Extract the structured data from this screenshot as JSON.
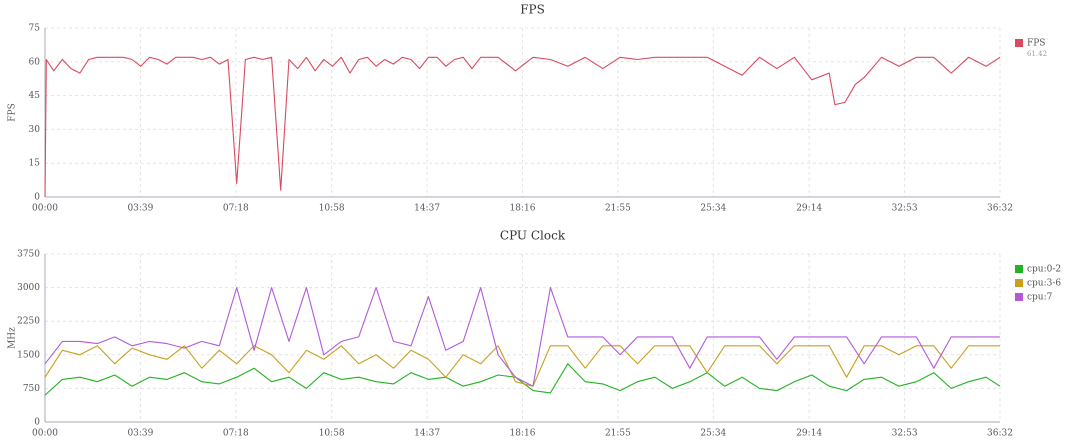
{
  "chart_data": [
    {
      "type": "line",
      "title": "FPS",
      "ylabel": "FPS",
      "grid": true,
      "legend": "right",
      "xlim": [
        0,
        2192
      ],
      "ylim": [
        0,
        75
      ],
      "yticks": [
        0,
        15,
        30,
        45,
        60,
        75
      ],
      "xticks": [
        {
          "value": 0,
          "label": "00:00"
        },
        {
          "value": 219,
          "label": "03:39"
        },
        {
          "value": 438,
          "label": "07:18"
        },
        {
          "value": 658,
          "label": "10:58"
        },
        {
          "value": 877,
          "label": "14:37"
        },
        {
          "value": 1096,
          "label": "18:16"
        },
        {
          "value": 1315,
          "label": "21:55"
        },
        {
          "value": 1534,
          "label": "25:34"
        },
        {
          "value": 1754,
          "label": "29:14"
        },
        {
          "value": 1973,
          "label": "32:53"
        },
        {
          "value": 2192,
          "label": "36:32"
        }
      ],
      "legend_value": 61.42,
      "x": [
        0,
        3,
        20,
        40,
        60,
        80,
        100,
        120,
        140,
        160,
        180,
        200,
        220,
        240,
        260,
        280,
        300,
        320,
        340,
        360,
        380,
        400,
        420,
        440,
        460,
        480,
        500,
        520,
        541,
        560,
        580,
        600,
        620,
        640,
        660,
        680,
        700,
        720,
        740,
        760,
        780,
        800,
        820,
        840,
        860,
        880,
        900,
        920,
        940,
        960,
        980,
        1000,
        1040,
        1080,
        1120,
        1160,
        1200,
        1240,
        1280,
        1320,
        1360,
        1400,
        1440,
        1480,
        1520,
        1560,
        1600,
        1640,
        1680,
        1720,
        1760,
        1800,
        1813,
        1836,
        1860,
        1880,
        1920,
        1960,
        2000,
        2040,
        2080,
        2120,
        2160,
        2192
      ],
      "series": [
        {
          "name": "FPS",
          "color": "#d9495f",
          "values": [
            0,
            61,
            56,
            61,
            57,
            55,
            61,
            62,
            62,
            62,
            62,
            61,
            58,
            62,
            61,
            59,
            62,
            62,
            62,
            61,
            62,
            59,
            61,
            6,
            61,
            62,
            61,
            62,
            3,
            61,
            57,
            62,
            56,
            61,
            58,
            62,
            55,
            61,
            62,
            58,
            61,
            59,
            62,
            61,
            57,
            62,
            62,
            58,
            61,
            62,
            57,
            62,
            62,
            56,
            62,
            61,
            58,
            62,
            57,
            62,
            61,
            62,
            62,
            62,
            62,
            58,
            54,
            62,
            57,
            62,
            52,
            55,
            41,
            42,
            50,
            53,
            62,
            58,
            62,
            62,
            55,
            62,
            58,
            62
          ]
        }
      ]
    },
    {
      "type": "line",
      "title": "CPU Clock",
      "ylabel": "MHz",
      "grid": true,
      "legend": "right",
      "xlim": [
        0,
        2192
      ],
      "ylim": [
        0,
        3750
      ],
      "yticks": [
        0,
        750,
        1500,
        2250,
        3000,
        3750
      ],
      "xticks": [
        {
          "value": 0,
          "label": "00:00"
        },
        {
          "value": 219,
          "label": "03:39"
        },
        {
          "value": 438,
          "label": "07:18"
        },
        {
          "value": 658,
          "label": "10:58"
        },
        {
          "value": 877,
          "label": "14:37"
        },
        {
          "value": 1096,
          "label": "18:16"
        },
        {
          "value": 1315,
          "label": "21:55"
        },
        {
          "value": 1534,
          "label": "25:34"
        },
        {
          "value": 1754,
          "label": "29:14"
        },
        {
          "value": 1973,
          "label": "32:53"
        },
        {
          "value": 2192,
          "label": "36:32"
        }
      ],
      "x": [
        0,
        40,
        80,
        120,
        160,
        200,
        240,
        280,
        320,
        360,
        400,
        440,
        480,
        520,
        560,
        600,
        640,
        680,
        720,
        760,
        800,
        840,
        880,
        920,
        960,
        1000,
        1040,
        1080,
        1120,
        1160,
        1200,
        1240,
        1280,
        1320,
        1360,
        1400,
        1440,
        1480,
        1520,
        1560,
        1600,
        1640,
        1680,
        1720,
        1760,
        1800,
        1840,
        1880,
        1920,
        1960,
        2000,
        2040,
        2080,
        2120,
        2160,
        2192
      ],
      "series": [
        {
          "name": "cpu:0-2",
          "color": "#22b322",
          "values": [
            600,
            950,
            1000,
            900,
            1050,
            800,
            1000,
            950,
            1100,
            900,
            850,
            1000,
            1200,
            900,
            1000,
            750,
            1100,
            950,
            1000,
            900,
            850,
            1100,
            950,
            1000,
            800,
            900,
            1050,
            1000,
            700,
            650,
            1300,
            900,
            850,
            700,
            900,
            1000,
            750,
            900,
            1100,
            800,
            1000,
            750,
            700,
            900,
            1050,
            800,
            700,
            950,
            1000,
            800,
            900,
            1100,
            750,
            900,
            1000,
            800
          ]
        },
        {
          "name": "cpu:3-6",
          "color": "#c8a01c",
          "values": [
            1000,
            1600,
            1500,
            1700,
            1300,
            1650,
            1500,
            1400,
            1700,
            1200,
            1600,
            1300,
            1700,
            1500,
            1100,
            1600,
            1400,
            1700,
            1300,
            1500,
            1200,
            1600,
            1400,
            1000,
            1500,
            1300,
            1700,
            900,
            800,
            1700,
            1700,
            1200,
            1700,
            1700,
            1300,
            1700,
            1700,
            1700,
            1100,
            1700,
            1700,
            1700,
            1300,
            1700,
            1700,
            1700,
            1000,
            1700,
            1700,
            1500,
            1700,
            1700,
            1200,
            1700,
            1700,
            1700
          ]
        },
        {
          "name": "cpu:7",
          "color": "#b35adb",
          "values": [
            1300,
            1800,
            1800,
            1750,
            1900,
            1700,
            1800,
            1750,
            1650,
            1800,
            1700,
            3000,
            1600,
            3000,
            1800,
            3000,
            1500,
            1800,
            1900,
            3000,
            1800,
            1700,
            2800,
            1600,
            1800,
            3000,
            1500,
            1000,
            800,
            3000,
            1900,
            1900,
            1900,
            1500,
            1900,
            1900,
            1900,
            1200,
            1900,
            1900,
            1900,
            1900,
            1400,
            1900,
            1900,
            1900,
            1900,
            1300,
            1900,
            1900,
            1900,
            1200,
            1900,
            1900,
            1900,
            1900
          ]
        }
      ]
    }
  ]
}
